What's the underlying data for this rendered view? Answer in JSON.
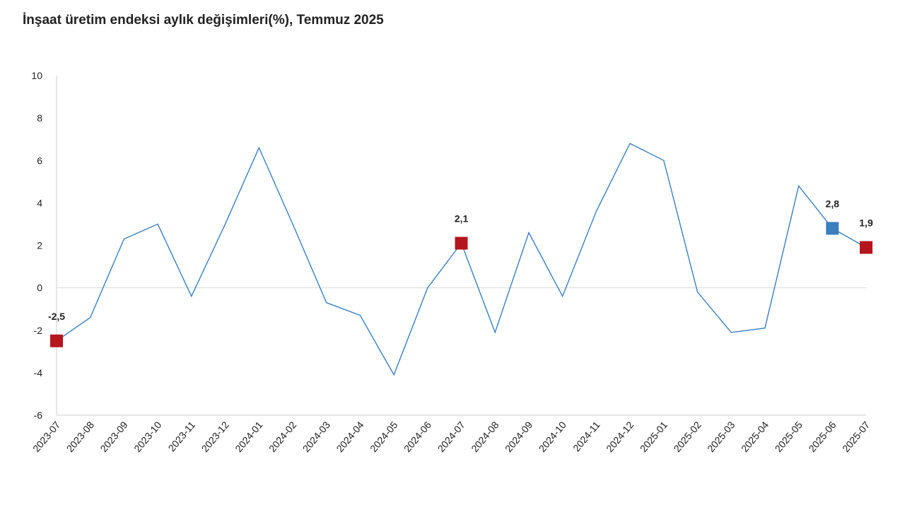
{
  "chart_data": {
    "type": "line",
    "title": "İnşaat üretim endeksi aylık değişimleri(%), Temmuz 2025",
    "xlabel": "",
    "ylabel": "",
    "ylim": [
      -6,
      10
    ],
    "yticks": [
      "-6",
      "-4",
      "-2",
      "0",
      "2",
      "4",
      "6",
      "8",
      "10"
    ],
    "categories": [
      "2023-07",
      "2023-08",
      "2023-09",
      "2023-10",
      "2023-11",
      "2023-12",
      "2024-01",
      "2024-02",
      "2024-03",
      "2024-04",
      "2024-05",
      "2024-06",
      "2024-07",
      "2024-08",
      "2024-09",
      "2024-10",
      "2024-11",
      "2024-12",
      "2025-01",
      "2025-02",
      "2025-03",
      "2025-04",
      "2025-05",
      "2025-06",
      "2025-07"
    ],
    "series": [
      {
        "name": "İnşaat üretim endeksi aylık değişim (%)",
        "color": "#3b7fbf",
        "values": [
          -2.5,
          -1.4,
          2.3,
          3.0,
          -0.4,
          3.0,
          6.6,
          3.0,
          -0.7,
          -1.3,
          -4.1,
          0.0,
          2.1,
          -2.1,
          2.6,
          -0.4,
          3.6,
          6.8,
          6.0,
          -0.2,
          -2.1,
          -1.9,
          4.8,
          2.8,
          1.9
        ]
      }
    ],
    "highlighted_points": [
      {
        "category": "2023-07",
        "value": -2.5,
        "label": "-2,5",
        "color": "#b5151d"
      },
      {
        "category": "2024-07",
        "value": 2.1,
        "label": "2,1",
        "color": "#b5151d"
      },
      {
        "category": "2025-06",
        "value": 2.8,
        "label": "2,8",
        "color": "#3b7fbf"
      },
      {
        "category": "2025-07",
        "value": 1.9,
        "label": "1,9",
        "color": "#b5151d"
      }
    ],
    "grid": false,
    "legend": "none"
  }
}
